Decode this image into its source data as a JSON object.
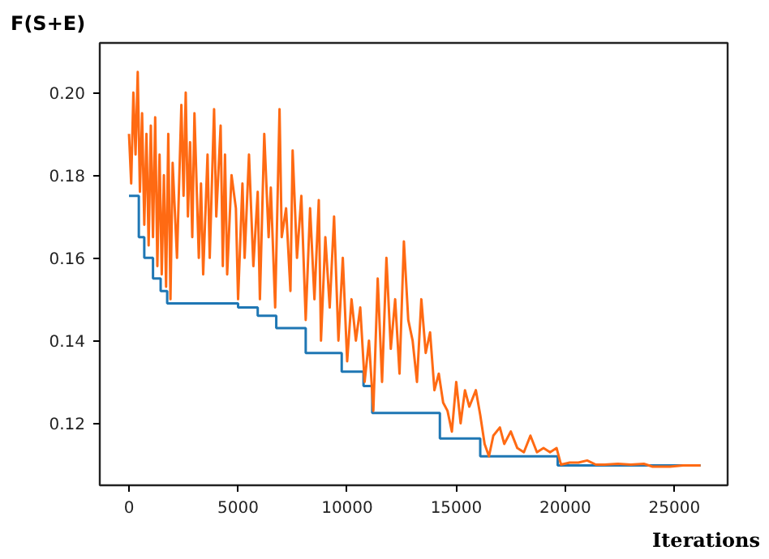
{
  "chart_data": {
    "type": "line",
    "xlabel": "Iterations",
    "ylabel": "F(S+E)",
    "xlim": [
      -1340,
      27440
    ],
    "ylim": [
      0.105,
      0.212
    ],
    "xticks": [
      0,
      5000,
      10000,
      15000,
      20000,
      25000
    ],
    "yticks": [
      {
        "value": 0.12,
        "label": "0.12"
      },
      {
        "value": 0.14,
        "label": "0.14"
      },
      {
        "value": 0.16,
        "label": "0.16"
      },
      {
        "value": 0.18,
        "label": "0.18"
      },
      {
        "value": 0.2,
        "label": "0.20"
      }
    ],
    "grid": false,
    "series": [
      {
        "type": "step",
        "color": "#1f77b4",
        "x": [
          0,
          450,
          700,
          1100,
          1450,
          1750,
          5000,
          5900,
          6750,
          8100,
          9750,
          10750,
          11150,
          14250,
          16100,
          19650,
          26200
        ],
        "values": [
          0.175,
          0.165,
          0.16,
          0.155,
          0.152,
          0.149,
          0.148,
          0.146,
          0.143,
          0.137,
          0.1325,
          0.129,
          0.1225,
          0.1163,
          0.112,
          0.1098,
          0.1098
        ]
      },
      {
        "color": "#ff6a13",
        "x": [
          0,
          100,
          200,
          300,
          400,
          500,
          600,
          700,
          800,
          900,
          1000,
          1100,
          1200,
          1300,
          1400,
          1500,
          1600,
          1700,
          1800,
          1900,
          2000,
          2200,
          2400,
          2500,
          2600,
          2700,
          2800,
          2900,
          3000,
          3200,
          3300,
          3400,
          3600,
          3700,
          3900,
          4000,
          4200,
          4300,
          4400,
          4500,
          4700,
          4900,
          5000,
          5200,
          5300,
          5500,
          5700,
          5900,
          6000,
          6200,
          6400,
          6500,
          6700,
          6900,
          7000,
          7200,
          7400,
          7500,
          7700,
          7900,
          8100,
          8300,
          8500,
          8700,
          8800,
          9000,
          9200,
          9400,
          9600,
          9800,
          10000,
          10200,
          10400,
          10600,
          10800,
          11000,
          11200,
          11400,
          11600,
          11800,
          12000,
          12200,
          12400,
          12600,
          12800,
          13000,
          13200,
          13400,
          13600,
          13800,
          14000,
          14200,
          14400,
          14600,
          14800,
          15000,
          15200,
          15400,
          15600,
          15900,
          16100,
          16300,
          16500,
          16700,
          17000,
          17200,
          17500,
          17800,
          18100,
          18400,
          18700,
          19000,
          19300,
          19600,
          19800,
          20200,
          20600,
          21000,
          21400,
          21800,
          22400,
          23000,
          23600,
          24000,
          24800,
          25400,
          26200
        ],
        "values": [
          0.19,
          0.178,
          0.2,
          0.185,
          0.205,
          0.176,
          0.195,
          0.168,
          0.19,
          0.163,
          0.192,
          0.165,
          0.194,
          0.158,
          0.185,
          0.156,
          0.18,
          0.153,
          0.19,
          0.15,
          0.183,
          0.16,
          0.197,
          0.175,
          0.2,
          0.17,
          0.188,
          0.165,
          0.195,
          0.16,
          0.178,
          0.156,
          0.185,
          0.16,
          0.196,
          0.17,
          0.192,
          0.158,
          0.185,
          0.156,
          0.18,
          0.172,
          0.15,
          0.178,
          0.16,
          0.185,
          0.158,
          0.176,
          0.15,
          0.19,
          0.165,
          0.177,
          0.148,
          0.196,
          0.165,
          0.172,
          0.152,
          0.186,
          0.16,
          0.175,
          0.145,
          0.172,
          0.15,
          0.174,
          0.14,
          0.165,
          0.148,
          0.17,
          0.14,
          0.16,
          0.135,
          0.15,
          0.14,
          0.148,
          0.13,
          0.14,
          0.123,
          0.155,
          0.13,
          0.16,
          0.138,
          0.15,
          0.132,
          0.164,
          0.145,
          0.14,
          0.13,
          0.15,
          0.137,
          0.142,
          0.128,
          0.132,
          0.125,
          0.123,
          0.118,
          0.13,
          0.12,
          0.128,
          0.124,
          0.128,
          0.122,
          0.115,
          0.112,
          0.117,
          0.119,
          0.115,
          0.118,
          0.114,
          0.113,
          0.117,
          0.113,
          0.114,
          0.113,
          0.114,
          0.11,
          0.1105,
          0.1105,
          0.111,
          0.11,
          0.11,
          0.1102,
          0.11,
          0.1102,
          0.1095,
          0.1095,
          0.1098,
          0.1098
        ]
      }
    ]
  }
}
